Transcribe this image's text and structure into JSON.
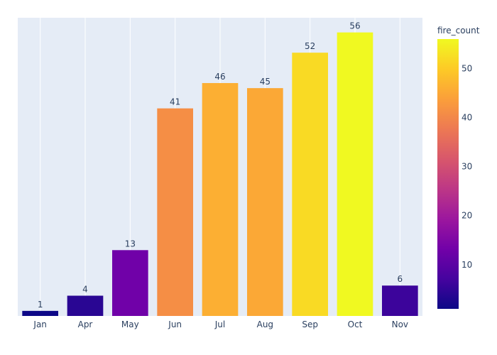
{
  "chart_data": {
    "type": "bar",
    "categories": [
      "Jan",
      "Apr",
      "May",
      "Jun",
      "Jul",
      "Aug",
      "Sep",
      "Oct",
      "Nov"
    ],
    "values": [
      1,
      4,
      13,
      41,
      46,
      45,
      52,
      56,
      6
    ],
    "ylim": [
      0,
      58.9
    ],
    "grid": true,
    "color_scale": {
      "title": "fire_count",
      "min": 1,
      "max": 56,
      "ticks": [
        10,
        20,
        30,
        40,
        50
      ],
      "colors": [
        "#0d0887",
        "#46039f",
        "#7201a8",
        "#9c179e",
        "#bd3786",
        "#d8576b",
        "#ed7953",
        "#fb9f3a",
        "#fdca26",
        "#f0f921"
      ]
    },
    "plot_background": "#e5ecf6"
  }
}
